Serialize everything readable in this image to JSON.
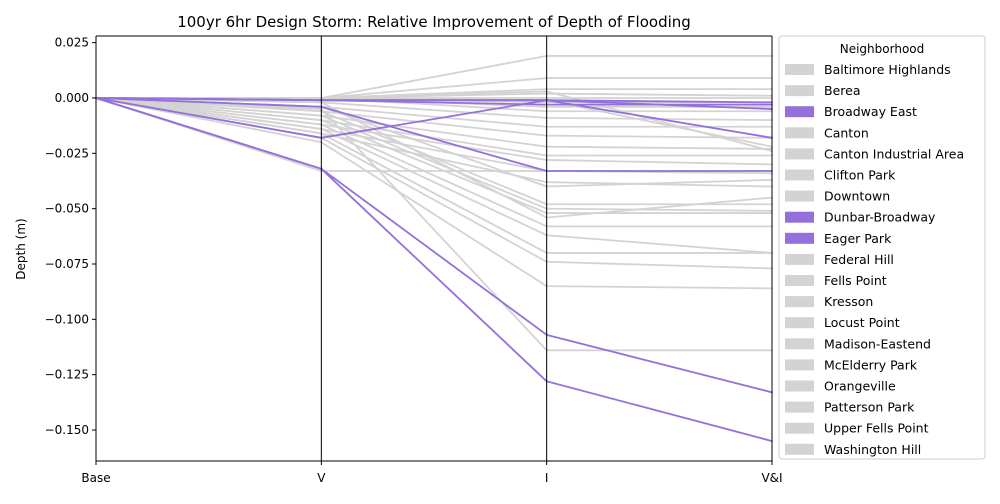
{
  "chart_data": {
    "type": "line",
    "title": "100yr 6hr Design Storm: Relative Improvement of Depth of Flooding",
    "xlabel": "",
    "ylabel": "Depth (m)",
    "categories": [
      "Base",
      "V",
      "I",
      "V&I"
    ],
    "ylim": [
      -0.164,
      0.028
    ],
    "yticks": [
      0.025,
      0.0,
      -0.025,
      -0.05,
      -0.075,
      -0.1,
      -0.125,
      -0.15
    ],
    "ytick_labels": [
      "0.025",
      "0.000",
      "−0.025",
      "−0.050",
      "−0.075",
      "−0.100",
      "−0.125",
      "−0.150"
    ],
    "grid": false,
    "legend": {
      "title": "Neighborhood",
      "placement": "outside-right",
      "entries": [
        {
          "label": "Baltimore Highlands",
          "color": "#d3d3d3"
        },
        {
          "label": "Berea",
          "color": "#d3d3d3"
        },
        {
          "label": "Broadway East",
          "color": "#9370db"
        },
        {
          "label": "Canton",
          "color": "#d3d3d3"
        },
        {
          "label": "Canton Industrial Area",
          "color": "#d3d3d3"
        },
        {
          "label": "Clifton Park",
          "color": "#d3d3d3"
        },
        {
          "label": "Downtown",
          "color": "#d3d3d3"
        },
        {
          "label": "Dunbar-Broadway",
          "color": "#9370db"
        },
        {
          "label": "Eager Park",
          "color": "#9370db"
        },
        {
          "label": "Federal Hill",
          "color": "#d3d3d3"
        },
        {
          "label": "Fells Point",
          "color": "#d3d3d3"
        },
        {
          "label": "Kresson",
          "color": "#d3d3d3"
        },
        {
          "label": "Locust Point",
          "color": "#d3d3d3"
        },
        {
          "label": "Madison-Eastend",
          "color": "#d3d3d3"
        },
        {
          "label": "McElderry Park",
          "color": "#d3d3d3"
        },
        {
          "label": "Orangeville",
          "color": "#d3d3d3"
        },
        {
          "label": "Patterson Park",
          "color": "#d3d3d3"
        },
        {
          "label": "Upper Fells Point",
          "color": "#d3d3d3"
        },
        {
          "label": "Washington Hill",
          "color": "#d3d3d3"
        }
      ]
    },
    "colors": {
      "highlight": "#9370db",
      "other": "#d3d3d3"
    },
    "series_gray": [
      [
        0,
        0,
        0.019,
        0.019
      ],
      [
        0,
        0,
        0.009,
        0.009
      ],
      [
        0,
        0,
        0.004,
        0.004
      ],
      [
        0,
        0,
        0.002,
        0.001
      ],
      [
        0,
        0,
        0.0,
        0.0
      ],
      [
        0,
        0,
        -0.002,
        -0.002
      ],
      [
        0,
        0,
        -0.004,
        -0.004
      ],
      [
        0,
        0,
        -0.006,
        -0.006
      ],
      [
        0,
        -0.002,
        -0.009,
        -0.01
      ],
      [
        0,
        -0.004,
        -0.013,
        -0.013
      ],
      [
        0,
        -0.006,
        -0.017,
        -0.018
      ],
      [
        0,
        -0.008,
        -0.022,
        -0.023
      ],
      [
        0,
        -0.01,
        -0.026,
        -0.026
      ],
      [
        0,
        -0.012,
        -0.028,
        -0.03
      ],
      [
        0,
        -0.014,
        -0.033,
        -0.034
      ],
      [
        0,
        -0.016,
        -0.038,
        -0.04
      ],
      [
        0,
        -0.004,
        -0.04,
        -0.037
      ],
      [
        0,
        -0.033,
        -0.033,
        -0.033
      ],
      [
        0,
        -0.006,
        -0.048,
        -0.048
      ],
      [
        0,
        -0.008,
        -0.05,
        -0.051
      ],
      [
        0,
        -0.01,
        -0.052,
        -0.052
      ],
      [
        0,
        -0.002,
        -0.054,
        -0.045
      ],
      [
        0,
        -0.012,
        -0.058,
        -0.058
      ],
      [
        0,
        -0.014,
        -0.062,
        -0.07
      ],
      [
        0,
        -0.016,
        -0.07,
        -0.07
      ],
      [
        0,
        -0.018,
        -0.074,
        -0.077
      ],
      [
        0,
        -0.02,
        -0.085,
        -0.086
      ],
      [
        0,
        -0.005,
        -0.114,
        -0.114
      ],
      [
        0,
        0,
        -0.001,
        -0.022
      ],
      [
        0,
        0,
        0.003,
        -0.024
      ]
    ],
    "series_highlight": [
      [
        0,
        -0.018,
        -0.001,
        -0.002
      ],
      [
        0,
        -0.001,
        -0.003,
        -0.003
      ],
      [
        0,
        -0.001,
        -0.001,
        -0.005
      ],
      [
        0,
        -0.001,
        -0.001,
        -0.018
      ],
      [
        0,
        -0.004,
        -0.033,
        -0.033
      ],
      [
        0,
        -0.032,
        -0.107,
        -0.133
      ],
      [
        0,
        -0.032,
        -0.128,
        -0.155
      ]
    ]
  }
}
